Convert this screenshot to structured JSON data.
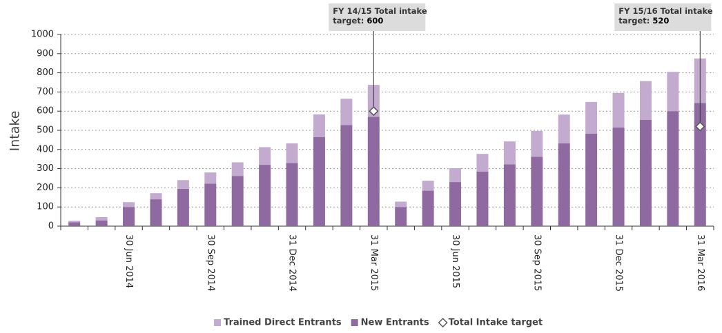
{
  "chart_data": {
    "type": "stacked_bar",
    "ylabel": "Intake",
    "categories": [
      null,
      null,
      "30 Jun 2014",
      null,
      null,
      "30 Sep 2014",
      null,
      null,
      "31 Dec 2014",
      null,
      null,
      "31 Mar 2015",
      null,
      null,
      "30 Jun 2015",
      null,
      null,
      "30 Sep 2015",
      null,
      null,
      "31 Dec 2015",
      null,
      null,
      "31 Mar 2016"
    ],
    "series": [
      {
        "name": "New Entrants",
        "color": "#8f6aa0",
        "values": [
          20,
          30,
          100,
          140,
          195,
          222,
          262,
          320,
          330,
          465,
          527,
          570,
          100,
          185,
          230,
          285,
          322,
          362,
          432,
          482,
          515,
          555,
          600,
          643
        ]
      },
      {
        "name": "Trained Direct Entrants",
        "color": "#c3abcf",
        "values": [
          8,
          17,
          25,
          32,
          45,
          58,
          71,
          92,
          102,
          118,
          138,
          167,
          28,
          52,
          72,
          92,
          120,
          135,
          150,
          166,
          180,
          202,
          205,
          232
        ]
      },
      {
        "name": "Total Intake target",
        "type": "marker",
        "color": "#ffffff",
        "values": [
          null,
          null,
          null,
          null,
          null,
          null,
          null,
          null,
          null,
          null,
          null,
          600,
          null,
          null,
          null,
          null,
          null,
          null,
          null,
          null,
          null,
          null,
          null,
          520
        ]
      }
    ],
    "annotations": [
      {
        "lines": [
          "FY 14/15 Total intake",
          "target:"
        ]
      },
      {
        "lines": [
          "FY 15/16 Total intake",
          "target:"
        ]
      }
    ],
    "ylim": [
      0,
      1000
    ],
    "yticks": [
      0,
      100,
      200,
      300,
      400,
      500,
      600,
      700,
      800,
      900,
      1000
    ],
    "grid": true,
    "legend": "bottom"
  }
}
